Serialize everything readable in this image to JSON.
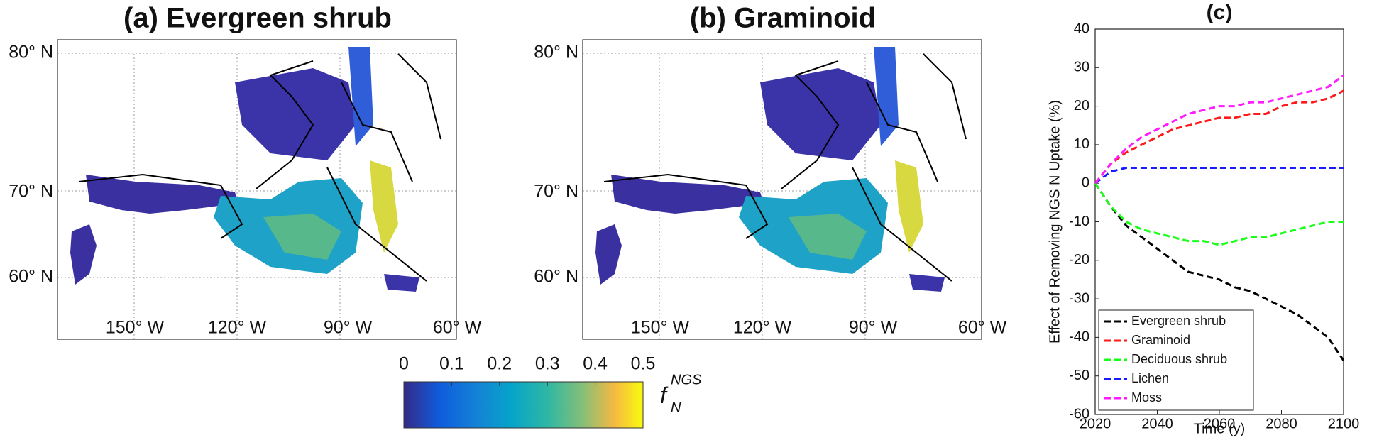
{
  "maps": [
    {
      "title": "(a) Evergreen shrub",
      "lat_labels": [
        "80° N",
        "70° N",
        "60° N"
      ],
      "lon_labels": [
        "150° W",
        "120° W",
        "90° W",
        "60° W"
      ]
    },
    {
      "title": "(b) Graminoid",
      "lat_labels": [
        "80° N",
        "70° N",
        "60° N"
      ],
      "lon_labels": [
        "150° W",
        "120° W",
        "90° W",
        "60° W"
      ]
    }
  ],
  "colorbar": {
    "clim": [
      0,
      0.5
    ],
    "ticks": [
      0,
      0.1,
      0.2,
      0.3,
      0.4,
      0.5
    ],
    "label": {
      "base": "f",
      "sub": "N",
      "sup": "NGS"
    }
  },
  "chart_data": {
    "type": "line",
    "title": "(c)",
    "x_label": "Time (y)",
    "y_label": "Effect of Removing NGS N Uptake (%)",
    "x": [
      2020,
      2025,
      2030,
      2035,
      2040,
      2045,
      2050,
      2055,
      2060,
      2065,
      2070,
      2075,
      2080,
      2085,
      2090,
      2095,
      2100
    ],
    "xlim": [
      2020,
      2100
    ],
    "xticks": [
      2020,
      2040,
      2060,
      2080,
      2100
    ],
    "ylim": [
      -60,
      40
    ],
    "yticks": [
      -60,
      -50,
      -40,
      -30,
      -20,
      -10,
      0,
      10,
      20,
      30,
      40
    ],
    "legend": "lower left",
    "series": [
      {
        "name": "Evergreen shrub",
        "color": "#000000",
        "values": [
          0,
          -6,
          -11,
          -14,
          -17,
          -20,
          -23,
          -24,
          -25,
          -27,
          -28,
          -30,
          -32,
          -34,
          -37,
          -40,
          -46
        ]
      },
      {
        "name": "Graminoid",
        "color": "#ff1a1a",
        "values": [
          0,
          5,
          8,
          10,
          12,
          14,
          15,
          16,
          17,
          17,
          18,
          18,
          20,
          21,
          21,
          22,
          24
        ]
      },
      {
        "name": "Deciduous shrub",
        "color": "#1aff1a",
        "values": [
          0,
          -6,
          -10,
          -12,
          -13,
          -14,
          -15,
          -15,
          -16,
          -15,
          -14,
          -14,
          -13,
          -12,
          -11,
          -10,
          -10
        ]
      },
      {
        "name": "Lichen",
        "color": "#1a1aff",
        "values": [
          0,
          3,
          4,
          4,
          4,
          4,
          4,
          4,
          4,
          4,
          4,
          4,
          4,
          4,
          4,
          4,
          4
        ]
      },
      {
        "name": "Moss",
        "color": "#ff1aff",
        "values": [
          0,
          5,
          9,
          12,
          14,
          16,
          18,
          19,
          20,
          20,
          21,
          21,
          22,
          23,
          24,
          25,
          28
        ]
      }
    ]
  }
}
